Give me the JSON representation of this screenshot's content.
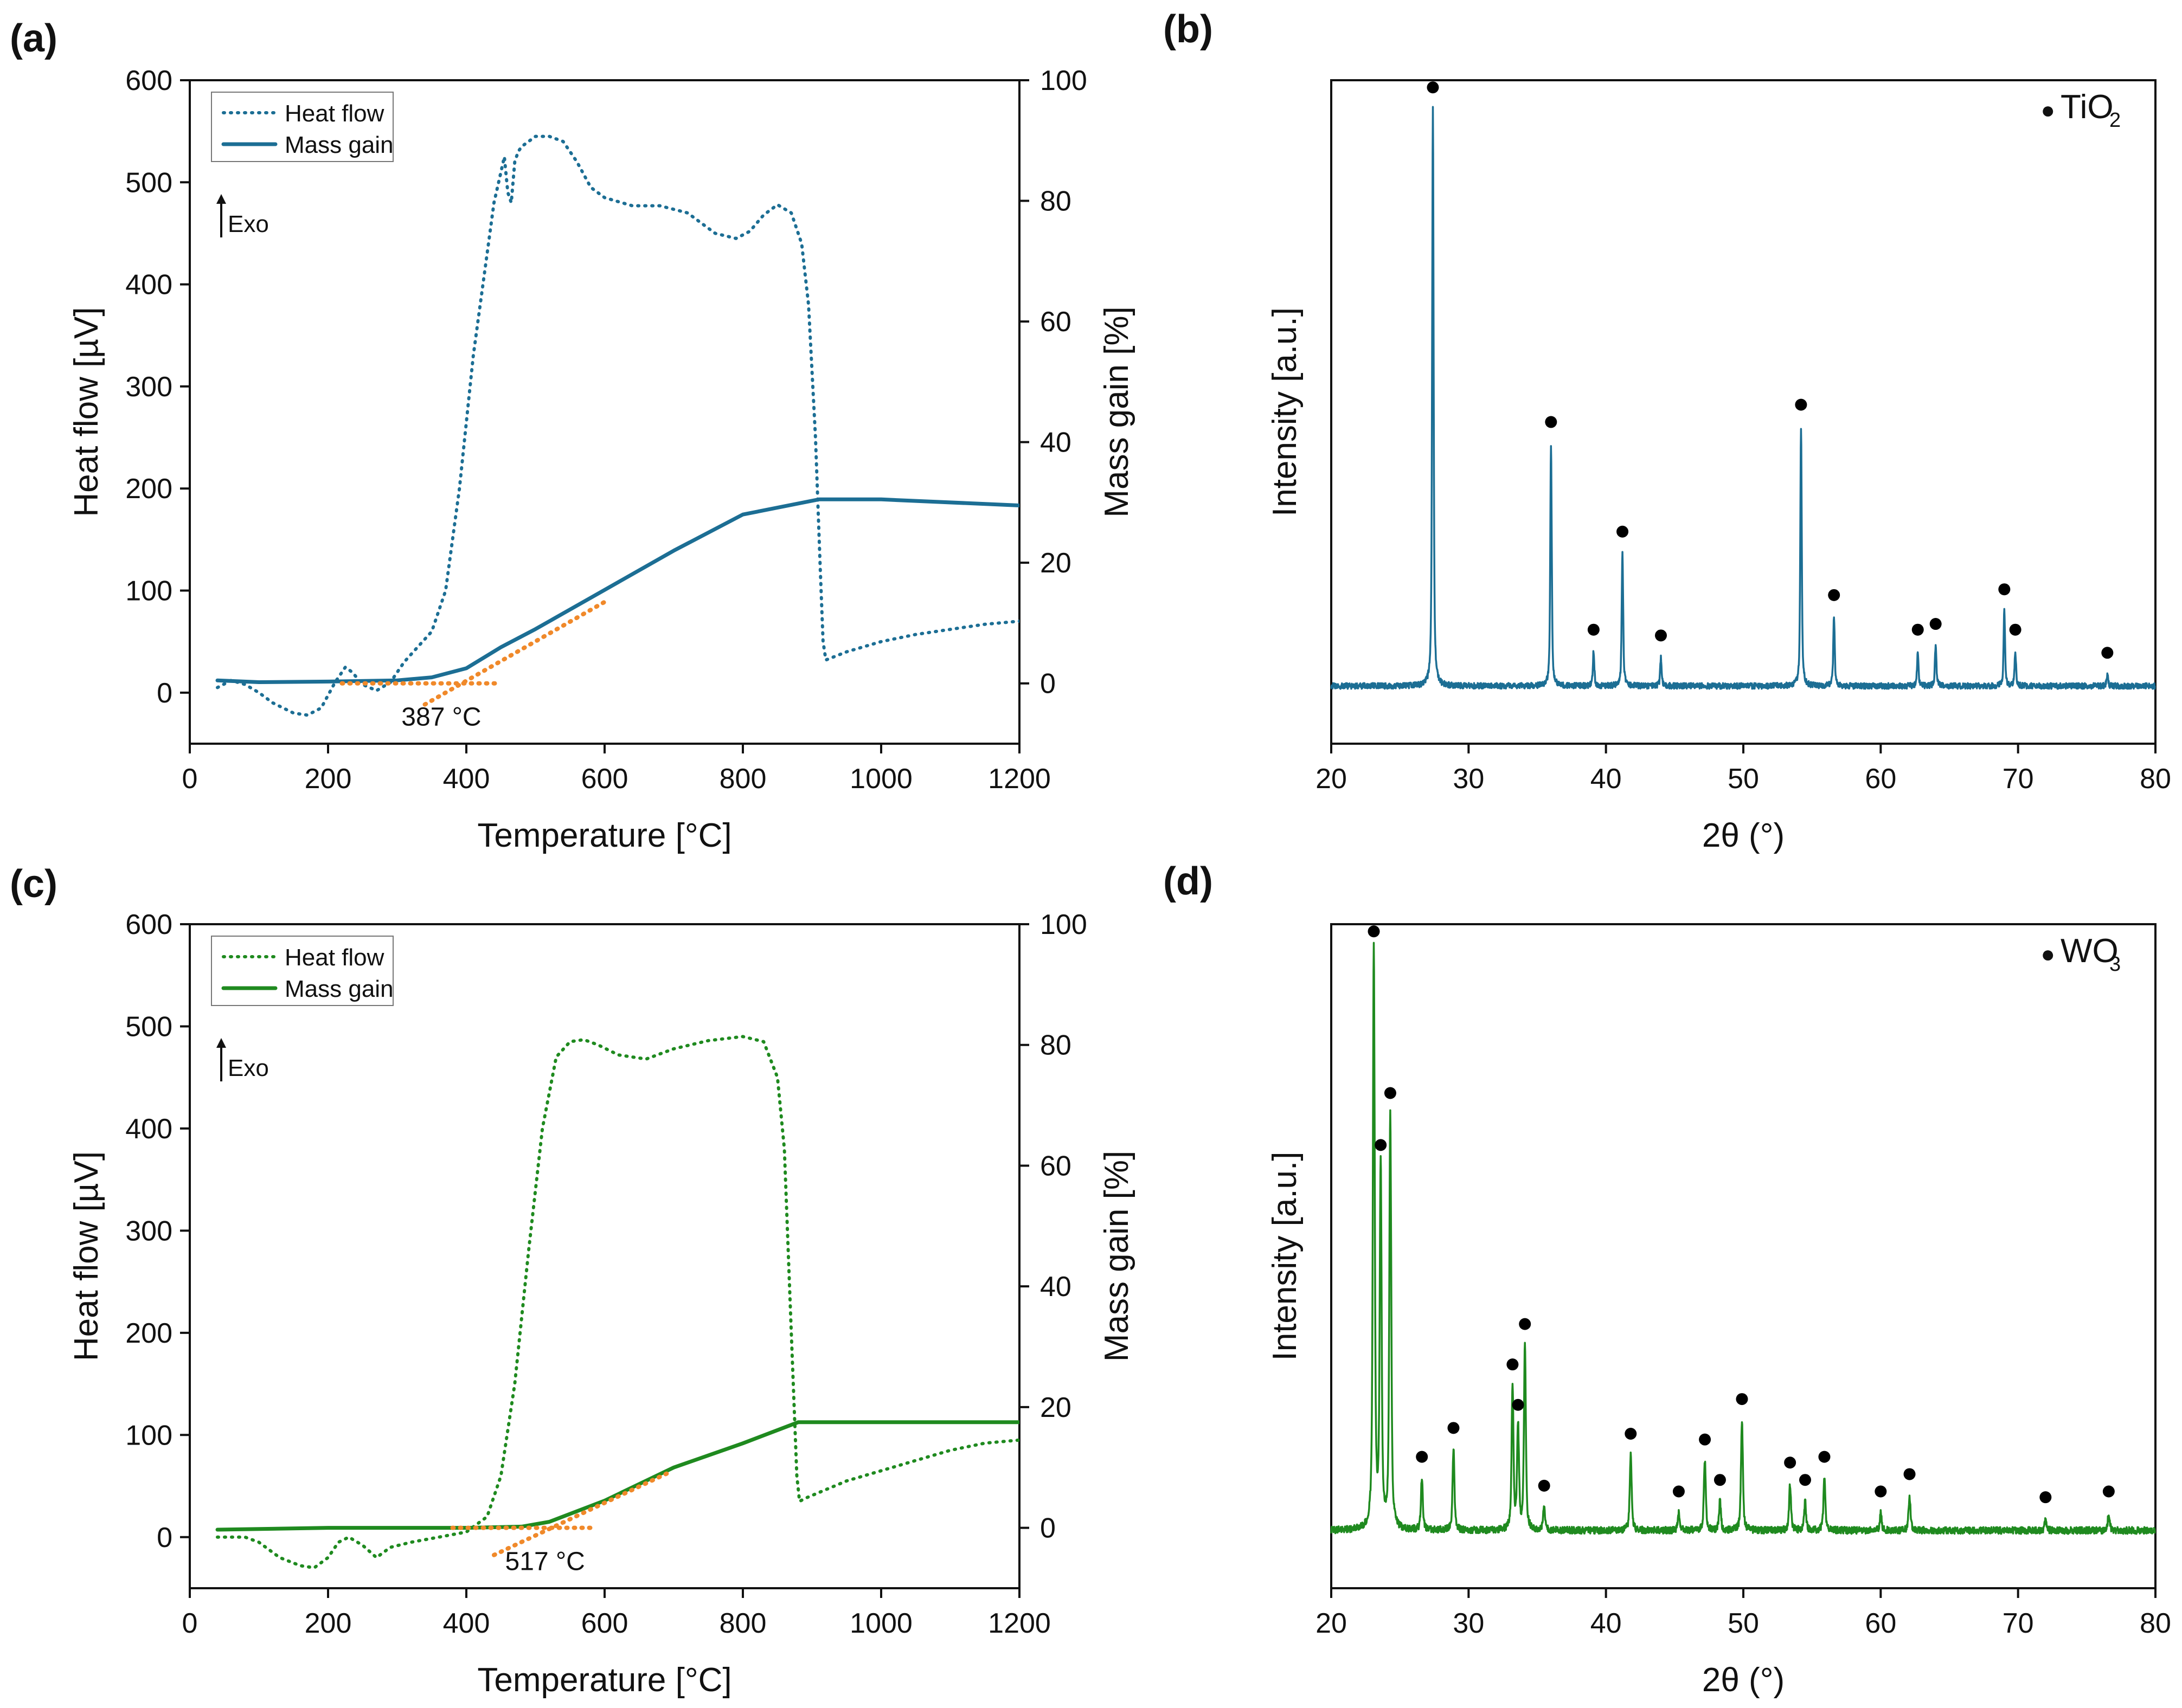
{
  "chart_data": [
    {
      "panel": "(a)",
      "type": "line",
      "xlabel": "Temperature [°C]",
      "ylabel": "Heat flow [µV]",
      "y2label": "Mass gain [%]",
      "xlim": [
        0,
        1200
      ],
      "ylim": [
        -50,
        600
      ],
      "y2lim": [
        -10,
        100
      ],
      "xticks": [
        0,
        200,
        400,
        600,
        800,
        1000,
        1200
      ],
      "yticks": [
        0,
        100,
        200,
        300,
        400,
        500,
        600
      ],
      "y2ticks": [
        0,
        20,
        40,
        60,
        80,
        100
      ],
      "grid": false,
      "legend_position": "top-left",
      "color": "#1c6e94",
      "exo_label": "Exo",
      "annotation": "387 °C",
      "series": [
        {
          "name": "Heat flow",
          "style": "dotted",
          "axis": "left",
          "x": [
            40,
            60,
            80,
            100,
            120,
            150,
            170,
            190,
            210,
            225,
            235,
            250,
            270,
            290,
            310,
            330,
            350,
            370,
            390,
            410,
            430,
            440,
            450,
            455,
            460,
            465,
            470,
            475,
            480,
            490,
            500,
            510,
            520,
            540,
            560,
            580,
            600,
            640,
            680,
            720,
            760,
            790,
            810,
            830,
            850,
            870,
            885,
            895,
            905,
            912,
            916,
            920,
            950,
            1000,
            1050,
            1100,
            1150,
            1200
          ],
          "y": [
            5,
            12,
            8,
            0,
            -10,
            -20,
            -22,
            -15,
            10,
            25,
            20,
            8,
            2,
            10,
            30,
            45,
            60,
            100,
            200,
            330,
            430,
            480,
            510,
            525,
            490,
            480,
            520,
            530,
            535,
            540,
            545,
            545,
            545,
            540,
            520,
            495,
            485,
            477,
            477,
            470,
            450,
            445,
            452,
            468,
            478,
            470,
            440,
            380,
            250,
            120,
            50,
            32,
            40,
            50,
            57,
            62,
            67,
            70
          ]
        },
        {
          "name": "Mass gain",
          "style": "solid",
          "axis": "right",
          "x": [
            40,
            100,
            200,
            300,
            350,
            400,
            450,
            500,
            600,
            700,
            800,
            910,
            1000,
            1200
          ],
          "y": [
            0.5,
            0.2,
            0.3,
            0.5,
            1.0,
            2.5,
            6,
            9,
            15.5,
            22,
            28,
            30.5,
            30.5,
            29.5
          ]
        },
        {
          "name": "onset-baseline",
          "style": "dotted",
          "axis": "right",
          "color": "#f0892a",
          "x": [
            220,
            445
          ],
          "y": [
            0,
            0
          ]
        },
        {
          "name": "onset-tangent",
          "style": "dotted",
          "axis": "right",
          "color": "#f0892a",
          "x": [
            340,
            600
          ],
          "y": [
            -3.5,
            13.5
          ]
        }
      ]
    },
    {
      "panel": "(b)",
      "type": "line",
      "xlabel": "2θ (°)",
      "ylabel": "Intensity [a.u.]",
      "xlim": [
        20,
        80
      ],
      "ylim": [
        -0.1,
        1.05
      ],
      "xticks": [
        20,
        30,
        40,
        50,
        60,
        70,
        80
      ],
      "grid": false,
      "legend_position": "top-right",
      "color": "#1c6e94",
      "phase_marker": "●",
      "phase_label": "TiO",
      "phase_subscript": "2",
      "peaks": [
        {
          "x": 27.4,
          "h": 1.0
        },
        {
          "x": 36.0,
          "h": 0.42
        },
        {
          "x": 39.1,
          "h": 0.06
        },
        {
          "x": 41.2,
          "h": 0.23
        },
        {
          "x": 44.0,
          "h": 0.05
        },
        {
          "x": 54.2,
          "h": 0.45
        },
        {
          "x": 56.6,
          "h": 0.12
        },
        {
          "x": 62.7,
          "h": 0.06
        },
        {
          "x": 64.0,
          "h": 0.07
        },
        {
          "x": 69.0,
          "h": 0.13
        },
        {
          "x": 69.8,
          "h": 0.06
        },
        {
          "x": 76.5,
          "h": 0.02
        }
      ]
    },
    {
      "panel": "(c)",
      "type": "line",
      "xlabel": "Temperature [°C]",
      "ylabel": "Heat flow [µV]",
      "y2label": "Mass gain [%]",
      "xlim": [
        0,
        1200
      ],
      "ylim": [
        -50,
        600
      ],
      "y2lim": [
        -10,
        100
      ],
      "xticks": [
        0,
        200,
        400,
        600,
        800,
        1000,
        1200
      ],
      "yticks": [
        0,
        100,
        200,
        300,
        400,
        500,
        600
      ],
      "y2ticks": [
        0,
        20,
        40,
        60,
        80,
        100
      ],
      "grid": false,
      "legend_position": "top-left",
      "color": "#1f8a1f",
      "exo_label": "Exo",
      "annotation": "517 °C",
      "series": [
        {
          "name": "Heat flow",
          "style": "dotted",
          "axis": "left",
          "x": [
            40,
            80,
            100,
            130,
            160,
            180,
            200,
            215,
            230,
            250,
            270,
            290,
            320,
            360,
            400,
            430,
            450,
            470,
            490,
            510,
            530,
            550,
            570,
            590,
            620,
            660,
            700,
            750,
            800,
            830,
            850,
            860,
            870,
            878,
            882,
            890,
            950,
            1000,
            1050,
            1100,
            1150,
            1200
          ],
          "y": [
            0,
            0,
            -5,
            -20,
            -28,
            -30,
            -20,
            -5,
            0,
            -8,
            -20,
            -10,
            -5,
            0,
            5,
            20,
            60,
            150,
            280,
            400,
            470,
            485,
            487,
            482,
            472,
            468,
            478,
            486,
            490,
            485,
            450,
            380,
            200,
            60,
            35,
            38,
            55,
            65,
            75,
            85,
            92,
            95
          ]
        },
        {
          "name": "Mass gain",
          "style": "solid",
          "axis": "right",
          "x": [
            40,
            200,
            400,
            480,
            520,
            600,
            700,
            800,
            880,
            1000,
            1200
          ],
          "y": [
            -0.3,
            0,
            0,
            0.2,
            1,
            4.5,
            10,
            14,
            17.5,
            17.5,
            17.5
          ]
        },
        {
          "name": "onset-baseline",
          "style": "dotted",
          "axis": "right",
          "color": "#f0892a",
          "x": [
            380,
            585
          ],
          "y": [
            0,
            0
          ]
        },
        {
          "name": "onset-tangent",
          "style": "dotted",
          "axis": "right",
          "color": "#f0892a",
          "x": [
            440,
            690
          ],
          "y": [
            -4.5,
            9
          ]
        }
      ]
    },
    {
      "panel": "(d)",
      "type": "line",
      "xlabel": "2θ (°)",
      "ylabel": "Intensity [a.u.]",
      "xlim": [
        20,
        80
      ],
      "ylim": [
        -0.1,
        1.05
      ],
      "xticks": [
        20,
        30,
        40,
        50,
        60,
        70,
        80
      ],
      "grid": false,
      "legend_position": "top-right",
      "color": "#1f8a1f",
      "phase_marker": "●",
      "phase_label": "WO",
      "phase_subscript": "3",
      "peaks": [
        {
          "x": 23.1,
          "h": 1.0
        },
        {
          "x": 23.6,
          "h": 0.63
        },
        {
          "x": 24.3,
          "h": 0.72
        },
        {
          "x": 26.6,
          "h": 0.09
        },
        {
          "x": 28.9,
          "h": 0.14
        },
        {
          "x": 33.2,
          "h": 0.25
        },
        {
          "x": 33.6,
          "h": 0.18
        },
        {
          "x": 34.1,
          "h": 0.32
        },
        {
          "x": 35.5,
          "h": 0.04
        },
        {
          "x": 41.8,
          "h": 0.13
        },
        {
          "x": 45.3,
          "h": 0.03
        },
        {
          "x": 47.2,
          "h": 0.12
        },
        {
          "x": 48.3,
          "h": 0.05
        },
        {
          "x": 49.9,
          "h": 0.19
        },
        {
          "x": 53.4,
          "h": 0.08
        },
        {
          "x": 54.5,
          "h": 0.05
        },
        {
          "x": 55.9,
          "h": 0.09
        },
        {
          "x": 60.0,
          "h": 0.03
        },
        {
          "x": 62.1,
          "h": 0.06
        },
        {
          "x": 72.0,
          "h": 0.02
        },
        {
          "x": 76.6,
          "h": 0.03
        }
      ]
    }
  ]
}
